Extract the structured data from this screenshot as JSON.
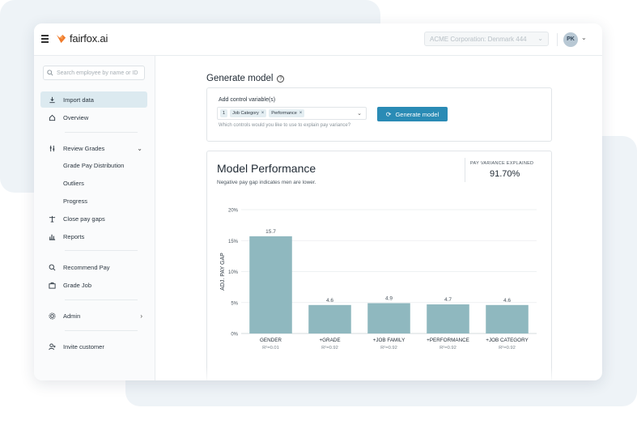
{
  "app": {
    "name": "fairfox.ai"
  },
  "topbar": {
    "org": "ACME Corporation: Denmark 444",
    "avatar_initials": "PK"
  },
  "sidebar": {
    "search_placeholder": "Search employee by name or ID",
    "items": [
      {
        "label": "Import data",
        "icon": "download-icon"
      },
      {
        "label": "Overview",
        "icon": "home-icon"
      },
      {
        "label": "Review Grades",
        "icon": "sliders-icon"
      },
      {
        "label": "Grade Pay Distribution"
      },
      {
        "label": "Outliers"
      },
      {
        "label": "Progress"
      },
      {
        "label": "Close pay gaps",
        "icon": "scale-icon"
      },
      {
        "label": "Reports",
        "icon": "bar-chart-icon"
      },
      {
        "label": "Recommend Pay",
        "icon": "money-search-icon"
      },
      {
        "label": "Grade Job",
        "icon": "briefcase-icon"
      },
      {
        "label": "Admin",
        "icon": "gear-icon"
      },
      {
        "label": "Invite customer",
        "icon": "add-user-icon"
      }
    ]
  },
  "generate": {
    "title": "Generate model",
    "controls_label": "Add control variable(s)",
    "count_chip": "1",
    "chips": [
      "Job Category",
      "Performance"
    ],
    "hint": "Which controls would you like to use to explain pay variance?",
    "button_label": "Generate model"
  },
  "performance": {
    "title": "Model Performance",
    "subtitle": "Negative pay gap indicates men are lower.",
    "pve_label": "PAY VARIANCE EXPLAINED",
    "pve_value": "91.70%"
  },
  "chart_data": {
    "type": "bar",
    "ylabel": "ADJ. PAY GAP",
    "ylim": [
      0,
      20
    ],
    "yticks": [
      "0%",
      "5%",
      "10%",
      "15%",
      "20%"
    ],
    "categories": [
      "GENDER",
      "+GRADE",
      "+JOB FAMILY",
      "+PERFORMANCE",
      "+JOB CATEGORY"
    ],
    "values": [
      15.7,
      4.6,
      4.9,
      4.7,
      4.6
    ],
    "r2": [
      "R²=0.01",
      "R²=0.92",
      "R²=0.92",
      "R²=0.92",
      "R²=0.92"
    ],
    "bar_color": "#8fb8bf",
    "grid": true
  }
}
